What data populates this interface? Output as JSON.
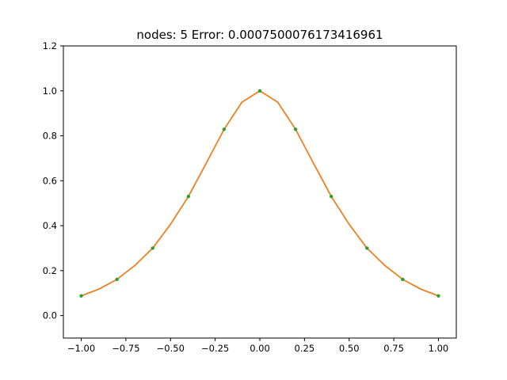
{
  "chart_data": {
    "type": "line",
    "title": "nodes: 5 Error: 0.0007500076173416961",
    "xlabel": "",
    "ylabel": "",
    "xlim": [
      -1.1,
      1.1
    ],
    "ylim": [
      -0.1,
      1.2
    ],
    "x_ticks": [
      -1.0,
      -0.75,
      -0.5,
      -0.25,
      0.0,
      0.25,
      0.5,
      0.75,
      1.0
    ],
    "x_tick_labels": [
      "−1.00",
      "−0.75",
      "−0.50",
      "−0.25",
      "0.00",
      "0.25",
      "0.50",
      "0.75",
      "1.00"
    ],
    "y_ticks": [
      0.0,
      0.2,
      0.4,
      0.6,
      0.8,
      1.0,
      1.2
    ],
    "y_tick_labels": [
      "0.0",
      "0.2",
      "0.4",
      "0.6",
      "0.8",
      "1.0",
      "1.2"
    ],
    "grid": false,
    "legend": "none",
    "series": [
      {
        "kind": "line",
        "color": "#1f77b4",
        "x": [
          -1.0,
          -0.9,
          -0.8,
          -0.7,
          -0.6,
          -0.5,
          -0.4,
          -0.3,
          -0.2,
          -0.1,
          0.0,
          0.1,
          0.2,
          0.3,
          0.4,
          0.5,
          0.6,
          0.7,
          0.8,
          0.9,
          1.0
        ],
        "y": [
          0.0876,
          0.118,
          0.161,
          0.223,
          0.3,
          0.406,
          0.53,
          0.678,
          0.829,
          0.95,
          1.0,
          0.95,
          0.829,
          0.678,
          0.53,
          0.406,
          0.3,
          0.223,
          0.161,
          0.118,
          0.0876
        ]
      },
      {
        "kind": "line",
        "color": "#ff7f0e",
        "x": [
          -1.0,
          -0.9,
          -0.8,
          -0.7,
          -0.6,
          -0.5,
          -0.4,
          -0.3,
          -0.2,
          -0.1,
          0.0,
          0.1,
          0.2,
          0.3,
          0.4,
          0.5,
          0.6,
          0.7,
          0.8,
          0.9,
          1.0
        ],
        "y": [
          0.0876,
          0.1185,
          0.161,
          0.2225,
          0.3,
          0.4065,
          0.53,
          0.6785,
          0.829,
          0.9495,
          1.0,
          0.9495,
          0.829,
          0.6785,
          0.53,
          0.4065,
          0.3,
          0.2225,
          0.161,
          0.1185,
          0.0876
        ]
      },
      {
        "kind": "points",
        "color": "#2ca02c",
        "x": [
          -1.0,
          -0.8,
          -0.6,
          -0.4,
          -0.2,
          0.0,
          0.2,
          0.4,
          0.6,
          0.8,
          1.0
        ],
        "y": [
          0.0876,
          0.161,
          0.3,
          0.53,
          0.829,
          1.0,
          0.829,
          0.53,
          0.3,
          0.161,
          0.0876
        ]
      }
    ]
  }
}
